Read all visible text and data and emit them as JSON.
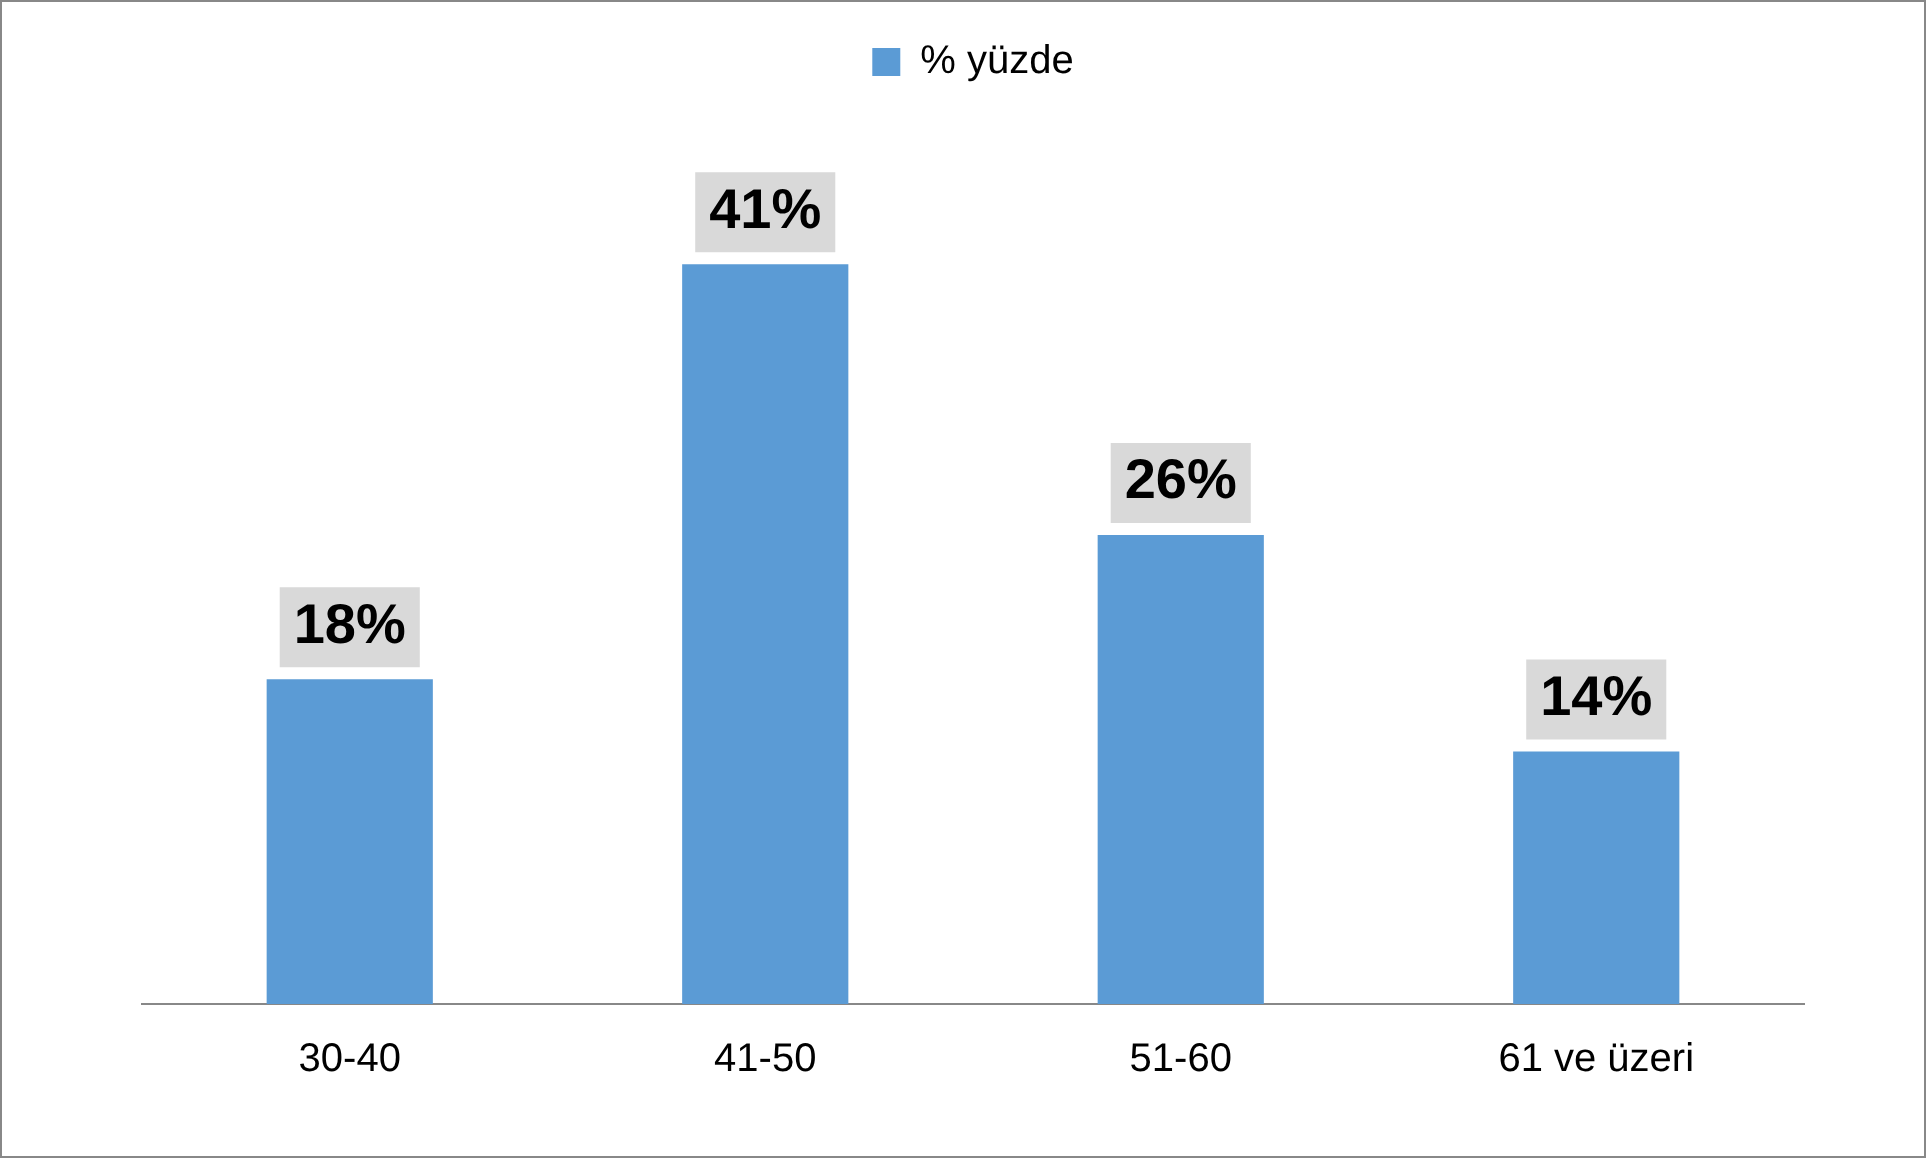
{
  "chart_data": {
    "type": "bar",
    "categories": [
      "30-40",
      "41-50",
      "51-60",
      "61 ve üzeri"
    ],
    "series": [
      {
        "name": "% yüzde",
        "color": "#5b9bd5",
        "values": [
          18,
          41,
          26,
          14
        ],
        "value_labels": [
          "18%",
          "41%",
          "26%",
          "14%"
        ]
      }
    ],
    "legend": "top",
    "grid": false
  }
}
